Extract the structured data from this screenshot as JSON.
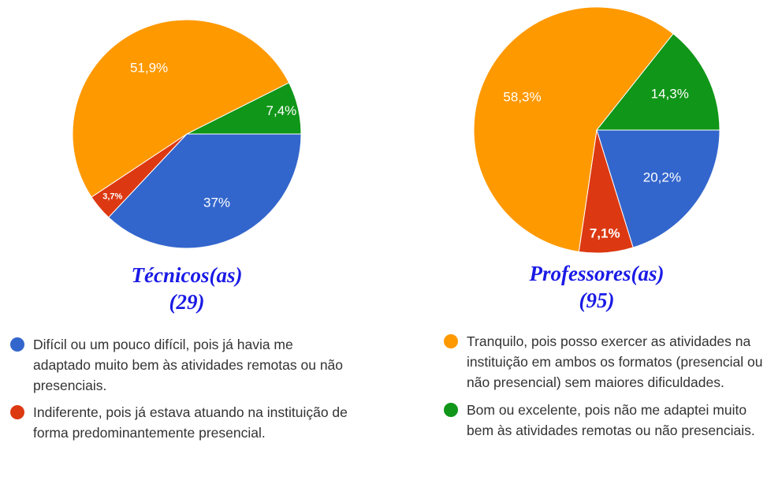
{
  "chart_data": [
    {
      "type": "pie",
      "title": "Técnicos(as)",
      "subtitle": "(29)",
      "categories": [
        "Difícil ou um pouco difícil, pois já havia me adaptado muito bem às atividades remotas ou não presenciais.",
        "Indiferente, pois já estava atuando na instituição de forma predominantemente presencial.",
        null,
        null
      ],
      "values": [
        37,
        3.7,
        51.9,
        7.4
      ],
      "value_labels": [
        "37%",
        "3,7%",
        "51,9%",
        "7,4%"
      ],
      "colors": [
        "#3366cc",
        "#dc3912",
        "#ff9900",
        "#109618"
      ]
    },
    {
      "type": "pie",
      "title": "Professores(as)",
      "subtitle": "(95)",
      "categories": [
        null,
        null,
        "Tranquilo, pois posso exercer as atividades na instituição em ambos os formatos (presencial ou não presencial) sem maiores dificuldades.",
        "Bom ou excelente, pois não me adaptei muito bem às atividades remotas ou não presenciais."
      ],
      "values": [
        20.2,
        7.1,
        58.3,
        14.3
      ],
      "value_labels": [
        "20,2%",
        "7,1%",
        "58,3%",
        "14,3%"
      ],
      "colors": [
        "#3366cc",
        "#dc3912",
        "#ff9900",
        "#109618"
      ]
    }
  ]
}
